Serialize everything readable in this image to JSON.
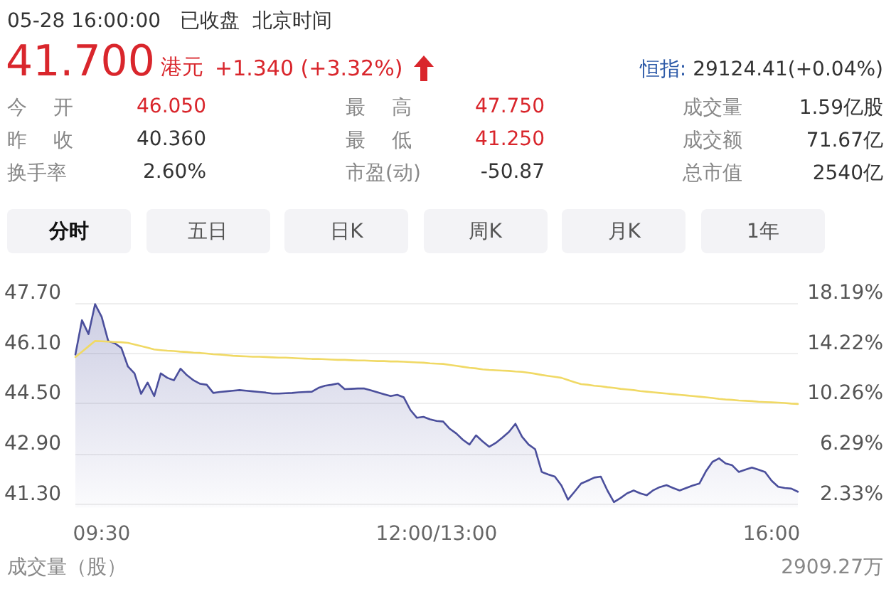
{
  "chart_data": {
    "type": "line",
    "annotations": [
      "05-28 16:00:00",
      "已收盘",
      "北京时间",
      "41.700",
      "港元",
      "+1.340 (+3.32%)",
      "恒指:",
      "29124.41(+0.04%)",
      "今 开",
      "46.050",
      "最 高",
      "47.750",
      "成交量",
      "1.59亿股",
      "昨 收",
      "40.360",
      "最 低",
      "41.250",
      "成交额",
      "71.67亿",
      "换手率",
      "2.60%",
      "市盈(动)",
      "-50.87",
      "总市值",
      "2540亿",
      "分时",
      "五日",
      "日K",
      "周K",
      "月K",
      "1年",
      "成交量（股）",
      "2909.27万"
    ],
    "categories": [
      null,
      null,
      null,
      null,
      "09:30",
      null,
      null,
      null,
      null,
      null,
      null,
      null,
      null,
      null,
      null,
      null,
      null,
      null,
      null,
      null,
      null,
      null,
      null,
      null,
      null,
      null,
      null,
      null,
      null,
      null,
      null,
      null,
      null,
      null,
      null,
      null,
      null,
      null,
      null,
      null,
      null,
      null,
      null,
      null,
      null,
      null,
      null,
      null,
      null,
      null,
      null,
      null,
      null,
      null,
      null,
      "12:00/13:00",
      null,
      null,
      null,
      null,
      null,
      null,
      null,
      null,
      null,
      null,
      null,
      null,
      null,
      null,
      null,
      null,
      null,
      null,
      null,
      null,
      null,
      null,
      null,
      null,
      null,
      null,
      null,
      null,
      null,
      null,
      null,
      null,
      null,
      null,
      null,
      null,
      null,
      null,
      null,
      null,
      null,
      null,
      null,
      null,
      null,
      null,
      null,
      null,
      null,
      null,
      "16:00",
      null,
      null,
      null,
      null
    ],
    "ylim": [
      41.2,
      47.8
    ],
    "yticks": [
      {
        "value": 41.3,
        "label": "41.30"
      },
      {
        "value": 42.9,
        "label": "42.90"
      },
      {
        "value": 44.5,
        "label": "44.50"
      },
      {
        "value": 46.1,
        "label": "46.10"
      },
      {
        "value": 47.7,
        "label": "47.70"
      }
    ],
    "y2lim": [
      2.08,
      18.43
    ],
    "y2ticks": [
      {
        "value": 2.33,
        "label": "2.33%"
      },
      {
        "value": 6.29,
        "label": "6.29%"
      },
      {
        "value": 10.26,
        "label": "10.26%"
      },
      {
        "value": 14.22,
        "label": "14.22%"
      },
      {
        "value": 18.19,
        "label": "18.19%"
      }
    ],
    "grid": "y",
    "marker": "none",
    "line_style": "solid",
    "series": [
      {
        "type": "area",
        "color": "#4b4f9c",
        "values": [
          46.06,
          47.15,
          46.71,
          47.66,
          47.26,
          46.49,
          46.42,
          46.27,
          45.68,
          45.46,
          44.81,
          45.17,
          44.74,
          45.46,
          45.32,
          45.24,
          45.61,
          45.4,
          45.24,
          45.13,
          45.1,
          44.84,
          44.87,
          44.89,
          44.91,
          44.93,
          44.91,
          44.89,
          44.87,
          44.85,
          44.82,
          44.82,
          44.83,
          44.84,
          44.86,
          44.87,
          44.88,
          45.0,
          45.07,
          45.1,
          45.14,
          44.96,
          44.97,
          44.98,
          44.98,
          44.92,
          44.86,
          44.8,
          44.74,
          44.78,
          44.7,
          44.3,
          44.05,
          44.08,
          44.0,
          43.95,
          43.93,
          43.7,
          43.55,
          43.35,
          43.2,
          43.49,
          43.3,
          43.13,
          43.25,
          43.42,
          43.6,
          43.86,
          43.45,
          43.2,
          43.05,
          42.33,
          42.25,
          42.18,
          41.9,
          41.45,
          41.7,
          41.96,
          42.05,
          42.15,
          42.18,
          41.74,
          41.37,
          41.5,
          41.65,
          41.74,
          41.65,
          41.59,
          41.75,
          41.85,
          41.91,
          41.82,
          41.74,
          41.82,
          41.9,
          41.96,
          42.35,
          42.65,
          42.76,
          42.6,
          42.54,
          42.33,
          42.4,
          42.47,
          42.4,
          42.33,
          42.05,
          41.86,
          41.82,
          41.8,
          41.7
        ]
      },
      {
        "type": "line",
        "color": "#f0d965",
        "values": [
          45.98,
          46.15,
          46.32,
          46.49,
          46.48,
          46.47,
          46.46,
          46.45,
          46.43,
          46.38,
          46.33,
          46.28,
          46.22,
          46.2,
          46.18,
          46.17,
          46.15,
          46.14,
          46.12,
          46.11,
          46.09,
          46.07,
          46.06,
          46.04,
          46.02,
          46.01,
          46.0,
          45.99,
          45.99,
          45.98,
          45.97,
          45.96,
          45.96,
          45.95,
          45.94,
          45.93,
          45.92,
          45.92,
          45.91,
          45.9,
          45.89,
          45.89,
          45.88,
          45.87,
          45.87,
          45.86,
          45.85,
          45.85,
          45.84,
          45.84,
          45.83,
          45.82,
          45.81,
          45.8,
          45.78,
          45.77,
          45.76,
          45.73,
          45.7,
          45.67,
          45.64,
          45.62,
          45.59,
          45.57,
          45.56,
          45.55,
          45.54,
          45.52,
          45.51,
          45.48,
          45.45,
          45.41,
          45.38,
          45.35,
          45.32,
          45.25,
          45.18,
          45.12,
          45.1,
          45.07,
          45.05,
          45.02,
          45.0,
          44.97,
          44.95,
          44.93,
          44.9,
          44.88,
          44.86,
          44.84,
          44.82,
          44.8,
          44.78,
          44.76,
          44.74,
          44.72,
          44.7,
          44.68,
          44.65,
          44.63,
          44.62,
          44.6,
          44.59,
          44.58,
          44.56,
          44.55,
          44.54,
          44.53,
          44.52,
          44.5,
          44.49
        ]
      }
    ]
  }
}
